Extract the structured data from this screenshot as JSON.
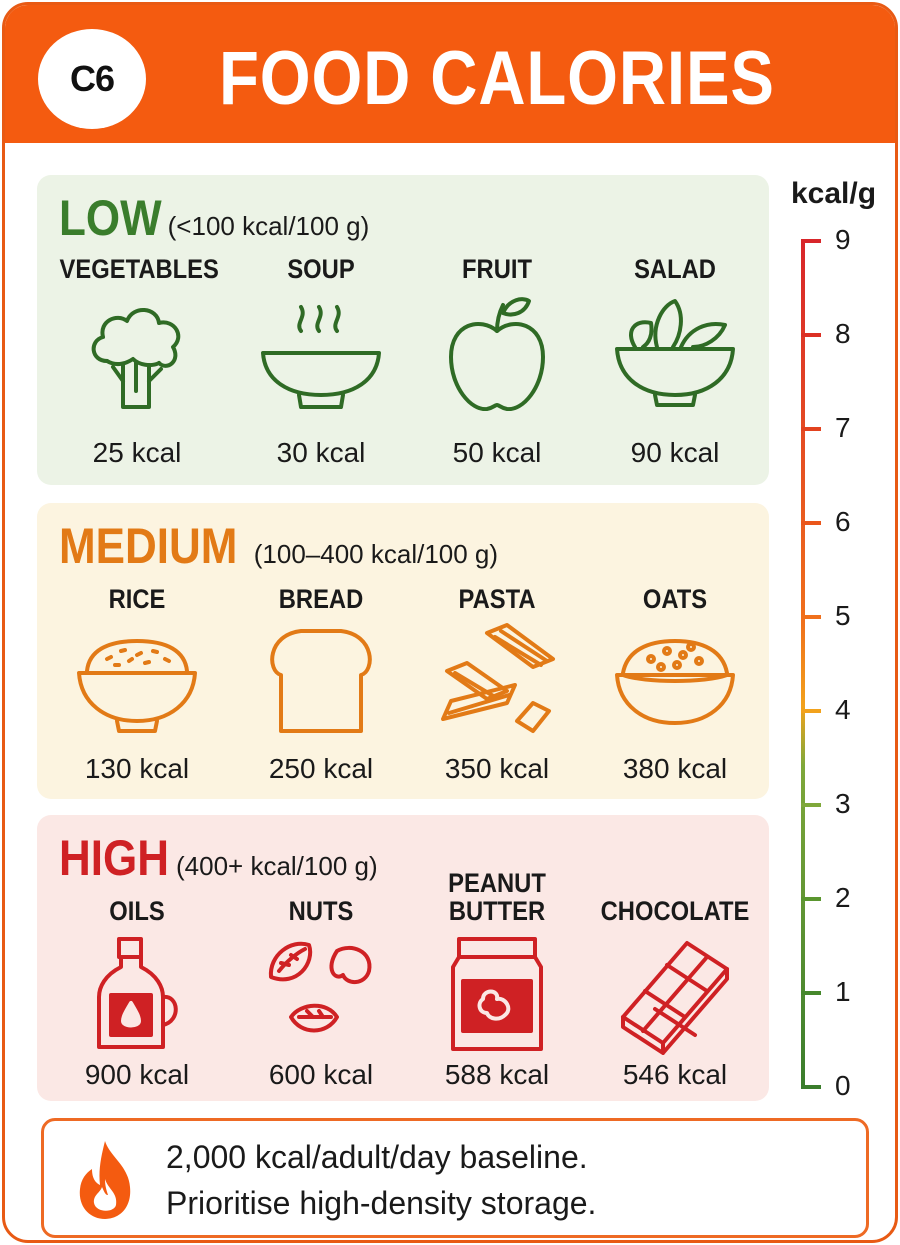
{
  "header": {
    "badge": "C6",
    "title": "FOOD CALORIES"
  },
  "scale": {
    "unit_label": "kcal/g",
    "ticks": [
      "9",
      "8",
      "7",
      "6",
      "5",
      "4",
      "3",
      "2",
      "1",
      "0"
    ],
    "colors": {
      "top": "#d8262a",
      "mid": "#f08a1c",
      "bottom": "#3a7d2c"
    }
  },
  "sections": {
    "low": {
      "title": "LOW",
      "range": "(<100 kcal/100 g)",
      "color": "#3a7d2c",
      "items": [
        {
          "name": "VEGETABLES",
          "kcal": "25 kcal",
          "icon": "broccoli-icon"
        },
        {
          "name": "SOUP",
          "kcal": "30 kcal",
          "icon": "soup-bowl-icon"
        },
        {
          "name": "FRUIT",
          "kcal": "50 kcal",
          "icon": "apple-icon"
        },
        {
          "name": "SALAD",
          "kcal": "90 kcal",
          "icon": "salad-bowl-icon"
        }
      ]
    },
    "medium": {
      "title": "MEDIUM",
      "range": "(100–400 kcal/100 g)",
      "color": "#e27a16",
      "items": [
        {
          "name": "RICE",
          "kcal": "130 kcal",
          "icon": "rice-bowl-icon"
        },
        {
          "name": "BREAD",
          "kcal": "250 kcal",
          "icon": "bread-slice-icon"
        },
        {
          "name": "PASTA",
          "kcal": "350 kcal",
          "icon": "pasta-icon"
        },
        {
          "name": "OATS",
          "kcal": "380 kcal",
          "icon": "oats-bowl-icon"
        }
      ]
    },
    "high": {
      "title": "HIGH",
      "range": "(400+ kcal/100 g)",
      "color": "#cf2124",
      "items": [
        {
          "name": "OILS",
          "kcal": "900 kcal",
          "icon": "oil-bottle-icon"
        },
        {
          "name": "NUTS",
          "kcal": "600 kcal",
          "icon": "nuts-icon"
        },
        {
          "name": "PEANUT BUTTER",
          "name_l1": "PEANUT",
          "name_l2": "BUTTER",
          "kcal": "588 kcal",
          "icon": "peanut-butter-jar-icon"
        },
        {
          "name": "CHOCOLATE",
          "kcal": "546 kcal",
          "icon": "chocolate-bar-icon"
        }
      ]
    }
  },
  "note": {
    "icon": "flame-icon",
    "line1": "2,000 kcal/adult/day baseline.",
    "line2": "Prioritise high-density storage."
  }
}
